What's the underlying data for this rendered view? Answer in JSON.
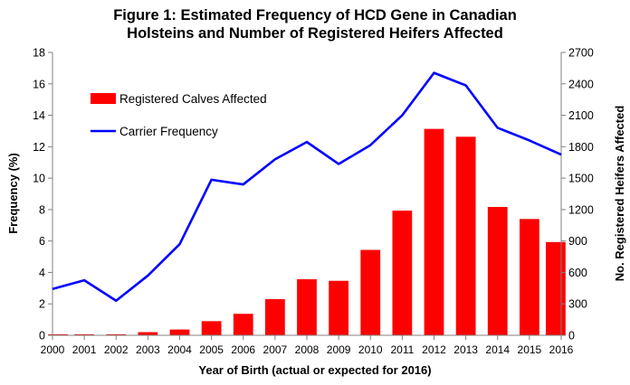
{
  "chart_data": {
    "type": "bar",
    "title": "Figure 1: Estimated Frequency of HCD Gene in Canadian",
    "subtitle": "Holsteins and Number of Registered Heifers Affected",
    "xlabel": "Year of Birth (actual or expected for 2016)",
    "ylabel_left": "Frequency (%)",
    "ylabel_right": "No. Registered Heifers Affected",
    "categories": [
      "2000",
      "2001",
      "2002",
      "2003",
      "2004",
      "2005",
      "2006",
      "2007",
      "2008",
      "2009",
      "2010",
      "2011",
      "2012",
      "2013",
      "2014",
      "2015",
      "2016"
    ],
    "y_left_range": [
      0,
      18
    ],
    "y_left_ticks": [
      "0",
      "2",
      "4",
      "6",
      "8",
      "10",
      "12",
      "14",
      "16",
      "18"
    ],
    "y_right_range": [
      0,
      2700
    ],
    "y_right_ticks": [
      "0",
      "300",
      "600",
      "900",
      "1200",
      "1500",
      "1800",
      "2100",
      "2400",
      "2700"
    ],
    "grid": false,
    "legend_position": "top-left",
    "series": [
      {
        "name": "Registered Calves Affected",
        "type": "bar",
        "axis": "right",
        "color": "#ff0000",
        "values": [
          10,
          10,
          10,
          30,
          55,
          135,
          205,
          345,
          535,
          520,
          815,
          1190,
          1970,
          1895,
          1225,
          1110,
          890
        ]
      },
      {
        "name": "Carrier Frequency",
        "type": "line",
        "axis": "left",
        "color": "#0000ff",
        "values": [
          2.95,
          3.5,
          2.2,
          3.8,
          5.8,
          9.9,
          9.6,
          11.2,
          12.3,
          10.9,
          12.1,
          14.0,
          16.7,
          15.9,
          13.2,
          12.4,
          11.5
        ]
      }
    ]
  }
}
